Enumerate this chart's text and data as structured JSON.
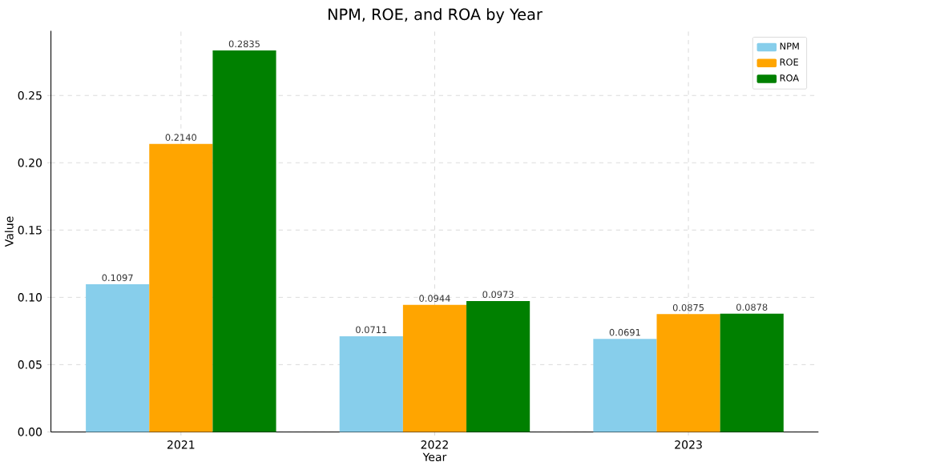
{
  "chart_data": {
    "type": "bar",
    "title": "NPM, ROE, and ROA by Year",
    "xlabel": "Year",
    "ylabel": "Value",
    "categories": [
      "2021",
      "2022",
      "2023"
    ],
    "series": [
      {
        "name": "NPM",
        "color": "#87ceeb",
        "values": [
          0.1097,
          0.0711,
          0.0691
        ],
        "value_labels": [
          "0.1097",
          "0.0711",
          "0.0691"
        ]
      },
      {
        "name": "ROE",
        "color": "#ffa500",
        "values": [
          0.214,
          0.0944,
          0.0875
        ],
        "value_labels": [
          "0.2140",
          "0.0944",
          "0.0875"
        ]
      },
      {
        "name": "ROA",
        "color": "#008000",
        "values": [
          0.2835,
          0.0973,
          0.0878
        ],
        "value_labels": [
          "0.2835",
          "0.0973",
          "0.0878"
        ]
      }
    ],
    "ylim": [
      0,
      0.298
    ],
    "yticks": [
      {
        "value": 0,
        "label": "0.00"
      },
      {
        "value": 0.05,
        "label": "0.05"
      },
      {
        "value": 0.1,
        "label": "0.10"
      },
      {
        "value": 0.15,
        "label": "0.15"
      },
      {
        "value": 0.2,
        "label": "0.20"
      },
      {
        "value": 0.25,
        "label": "0.25"
      }
    ],
    "grid": true,
    "legend": "top right"
  }
}
